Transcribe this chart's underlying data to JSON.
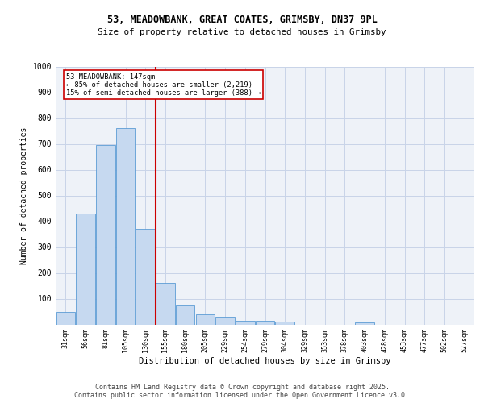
{
  "title1": "53, MEADOWBANK, GREAT COATES, GRIMSBY, DN37 9PL",
  "title2": "Size of property relative to detached houses in Grimsby",
  "xlabel": "Distribution of detached houses by size in Grimsby",
  "ylabel": "Number of detached properties",
  "categories": [
    "31sqm",
    "56sqm",
    "81sqm",
    "105sqm",
    "130sqm",
    "155sqm",
    "180sqm",
    "205sqm",
    "229sqm",
    "254sqm",
    "279sqm",
    "304sqm",
    "329sqm",
    "353sqm",
    "378sqm",
    "403sqm",
    "428sqm",
    "453sqm",
    "477sqm",
    "502sqm",
    "527sqm"
  ],
  "values": [
    50,
    430,
    695,
    760,
    370,
    160,
    75,
    40,
    30,
    15,
    15,
    10,
    0,
    0,
    0,
    7,
    0,
    0,
    0,
    0,
    0
  ],
  "bar_color": "#c6d9f0",
  "bar_edge_color": "#5b9bd5",
  "vline_x": 4.5,
  "vline_color": "#cc0000",
  "annotation_line1": "53 MEADOWBANK: 147sqm",
  "annotation_line2": "← 85% of detached houses are smaller (2,219)",
  "annotation_line3": "15% of semi-detached houses are larger (388) →",
  "annotation_box_color": "#cc0000",
  "ylim": [
    0,
    1000
  ],
  "yticks": [
    0,
    100,
    200,
    300,
    400,
    500,
    600,
    700,
    800,
    900,
    1000
  ],
  "grid_color": "#c8d4e8",
  "bg_color": "#eef2f8",
  "footer1": "Contains HM Land Registry data © Crown copyright and database right 2025.",
  "footer2": "Contains public sector information licensed under the Open Government Licence v3.0."
}
